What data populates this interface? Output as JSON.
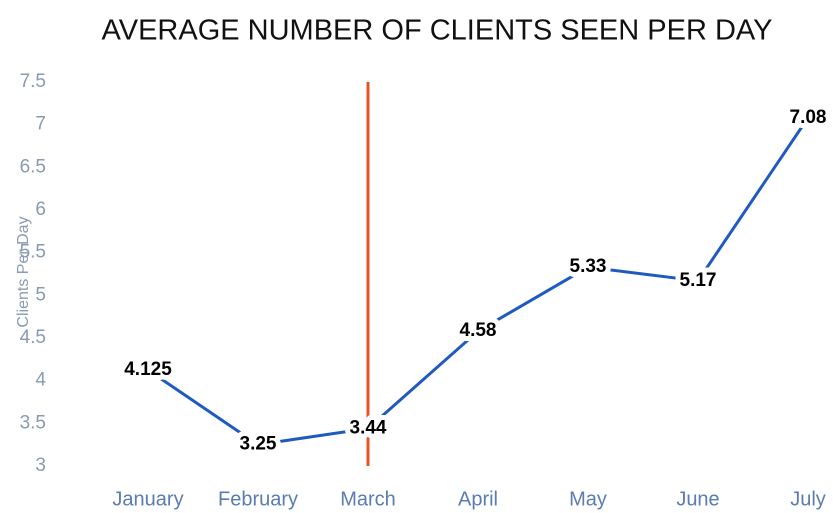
{
  "chart_data": {
    "type": "line",
    "title": "AVERAGE NUMBER OF CLIENTS SEEN PER DAY",
    "y_label": "Clients Per Day",
    "categories": [
      "January",
      "February",
      "March",
      "April",
      "May",
      "June",
      "July"
    ],
    "series": [
      {
        "name": "Clients Per Day",
        "color": "#1f5bbf",
        "values": [
          4.125,
          3.25,
          3.44,
          4.58,
          5.33,
          5.17,
          7.08
        ]
      }
    ],
    "ylim": [
      3,
      7.5
    ],
    "yticks": [
      3,
      3.5,
      4,
      4.5,
      5,
      5.5,
      6,
      6.5,
      7,
      7.5
    ],
    "grid": false,
    "legend": false,
    "vline": {
      "category": "March",
      "color": "#e8532b"
    }
  }
}
